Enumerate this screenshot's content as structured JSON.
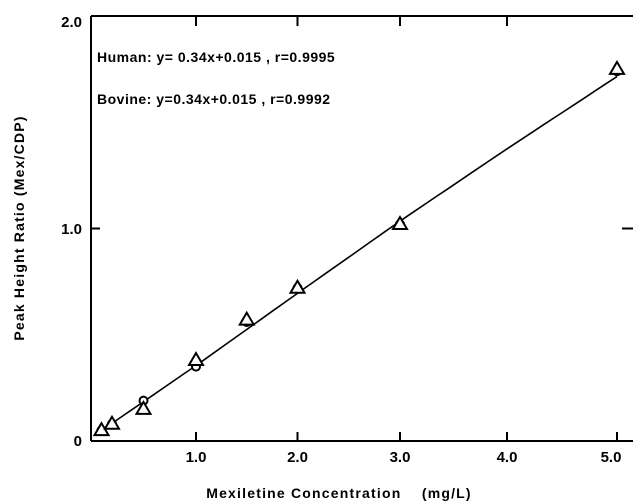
{
  "chart_data": {
    "type": "scatter",
    "title": "",
    "xlabel": "Mexiletine Concentration    (mg/L)",
    "ylabel": "Peak Height Ratio (Mex/CDP)",
    "xlim": [
      0,
      5.0
    ],
    "ylim": [
      0,
      2.0
    ],
    "x_tick_values": [
      1.0,
      2.0,
      3.0,
      4.0,
      5.0
    ],
    "x_tick_labels": [
      "1.0",
      "2.0",
      "3.0",
      "4.0",
      "5.0"
    ],
    "y_tick_values": [
      0,
      1.0,
      2.0
    ],
    "y_tick_labels": [
      "0",
      "1.0",
      "2.0"
    ],
    "grid": false,
    "legend": "none",
    "annotations": [
      "Human: y= 0.34x+0.015 , r=0.9995",
      "Bovine: y=0.34x+0.015 , r=0.9992"
    ],
    "series": [
      {
        "marker": "circle",
        "x": [
          0.1,
          0.2,
          0.5,
          1.0,
          1.5,
          2.0,
          3.0,
          5.0
        ],
        "y": [
          0.05,
          0.08,
          0.19,
          0.35,
          0.56,
          0.72,
          1.02,
          1.74
        ]
      },
      {
        "marker": "triangle",
        "x": [
          0.1,
          0.2,
          0.5,
          1.0,
          1.5,
          2.0,
          3.0,
          5.0
        ],
        "y": [
          0.05,
          0.08,
          0.15,
          0.38,
          0.57,
          0.72,
          1.02,
          1.75
        ]
      }
    ],
    "fit_line": {
      "slope": 0.34,
      "intercept": 0.015,
      "x_range": [
        0.1,
        5.0
      ]
    }
  }
}
